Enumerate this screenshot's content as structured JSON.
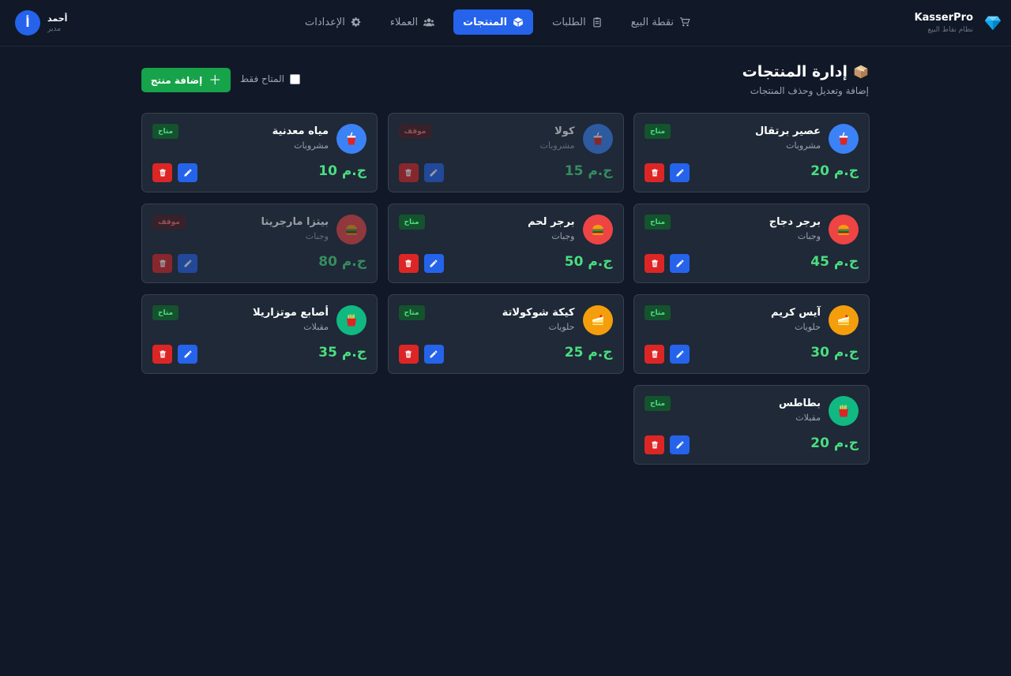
{
  "app": {
    "name": "KasserPro",
    "subtitle": "نظام نقاط البيع"
  },
  "nav": [
    {
      "label": "نقطة البيع",
      "icon": "cart-icon",
      "active": false
    },
    {
      "label": "الطلبات",
      "icon": "clipboard-icon",
      "active": false
    },
    {
      "label": "المنتجات",
      "icon": "cube-icon",
      "active": true
    },
    {
      "label": "العملاء",
      "icon": "users-icon",
      "active": false
    },
    {
      "label": "الإعدادات",
      "icon": "gear-icon",
      "active": false
    }
  ],
  "user": {
    "initial": "أ",
    "name": "أحمد",
    "role": "مدير"
  },
  "page": {
    "title": "إدارة المنتجات",
    "subtitle": "إضافة وتعديل وحذف المنتجات",
    "add_button": "إضافة منتج",
    "filter_label": "المتاح فقط",
    "filter_checked": false
  },
  "products": [
    {
      "name": "عصير برتقال",
      "category": "مشروبات",
      "price": "20 ج.م",
      "status": "متاح",
      "available": true,
      "icon": "drink-icon",
      "color": "#3b82f6"
    },
    {
      "name": "كولا",
      "category": "مشروبات",
      "price": "15 ج.م",
      "status": "موقف",
      "available": false,
      "icon": "drink-icon",
      "color": "#3b82f6"
    },
    {
      "name": "مياه معدنية",
      "category": "مشروبات",
      "price": "10 ج.م",
      "status": "متاح",
      "available": true,
      "icon": "drink-icon",
      "color": "#3b82f6"
    },
    {
      "name": "برجر دجاج",
      "category": "وجبات",
      "price": "45 ج.م",
      "status": "متاح",
      "available": true,
      "icon": "burger-icon",
      "color": "#ef4444"
    },
    {
      "name": "برجر لحم",
      "category": "وجبات",
      "price": "50 ج.م",
      "status": "متاح",
      "available": true,
      "icon": "burger-icon",
      "color": "#ef4444"
    },
    {
      "name": "بيتزا مارجريتا",
      "category": "وجبات",
      "price": "80 ج.م",
      "status": "موقف",
      "available": false,
      "icon": "burger-icon",
      "color": "#ef4444"
    },
    {
      "name": "آيس كريم",
      "category": "حلويات",
      "price": "30 ج.م",
      "status": "متاح",
      "available": true,
      "icon": "cake-icon",
      "color": "#f59e0b"
    },
    {
      "name": "كيكة شوكولاتة",
      "category": "حلويات",
      "price": "25 ج.م",
      "status": "متاح",
      "available": true,
      "icon": "cake-icon",
      "color": "#f59e0b"
    },
    {
      "name": "أصابع موتزاريلا",
      "category": "مقبلات",
      "price": "35 ج.م",
      "status": "متاح",
      "available": true,
      "icon": "fries-icon",
      "color": "#10b981"
    },
    {
      "name": "بطاطس",
      "category": "مقبلات",
      "price": "20 ج.م",
      "status": "متاح",
      "available": true,
      "icon": "fries-icon",
      "color": "#10b981"
    }
  ]
}
